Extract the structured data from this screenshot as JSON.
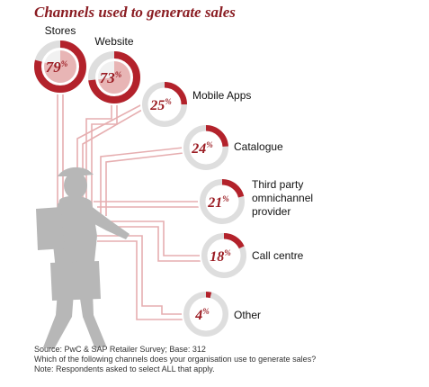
{
  "title": "Channels used to generate sales",
  "colors": {
    "accent": "#b3222b",
    "accent_light": "#e8b5b5",
    "ring_bg": "#dedede",
    "connector": "#e6aeb0",
    "silhouette": "#b7b7b7"
  },
  "chart_data": {
    "type": "pie",
    "title": "Channels used to generate sales",
    "unit": "%",
    "categories": [
      "Stores",
      "Website",
      "Mobile Apps",
      "Catalogue",
      "Third party omnichannel provider",
      "Call centre",
      "Other"
    ],
    "label_lines": [
      [
        "Stores"
      ],
      [
        "Website"
      ],
      [
        "Mobile Apps"
      ],
      [
        "Catalogue"
      ],
      [
        "Third party",
        "omnichannel",
        "provider"
      ],
      [
        "Call centre"
      ],
      [
        "Other"
      ]
    ],
    "values": [
      79,
      73,
      25,
      24,
      21,
      18,
      4
    ],
    "legend": "none"
  },
  "footnotes": [
    "Source: PwC & SAP Retailer Survey; Base: 312",
    "Which of the following channels does your organisation use to generate sales?",
    "Note: Respondents asked to select ALL that apply."
  ]
}
